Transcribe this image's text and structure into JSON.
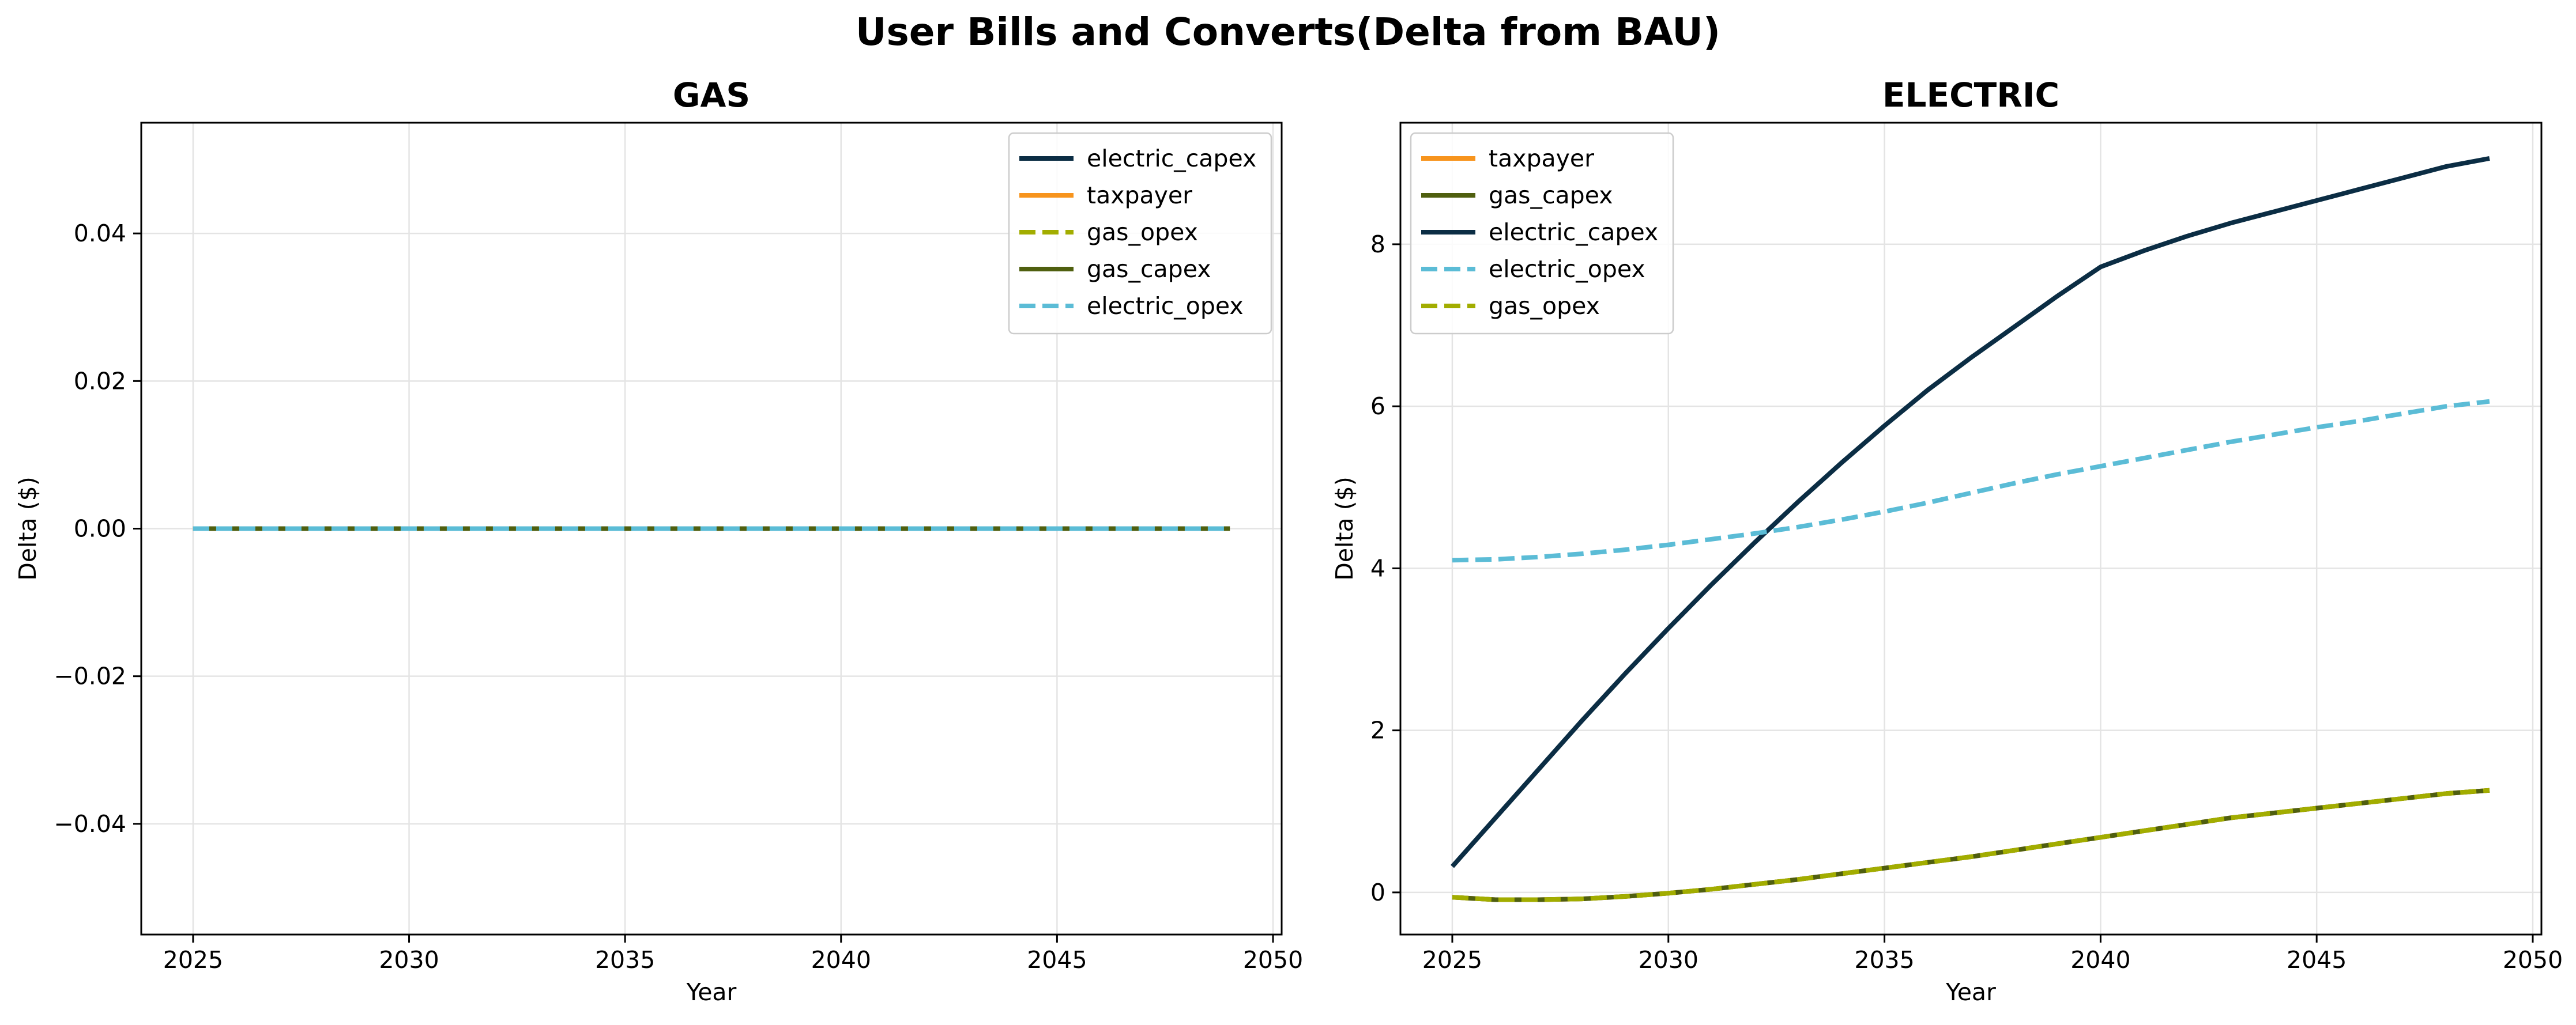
{
  "figure": {
    "suptitle": "User Bills and Converts(Delta from BAU)"
  },
  "chart_data": [
    {
      "type": "line",
      "title": "GAS",
      "xlabel": "Year",
      "ylabel": "Delta ($)",
      "xlim": [
        2023.8,
        2050.2
      ],
      "ylim": [
        -0.055,
        0.055
      ],
      "xticks": [
        2025,
        2030,
        2035,
        2040,
        2045,
        2050
      ],
      "xtick_labels": [
        "2025",
        "2030",
        "2035",
        "2040",
        "2045",
        "2050"
      ],
      "yticks": [
        -0.04,
        -0.02,
        0.0,
        0.02,
        0.04
      ],
      "ytick_labels": [
        "−0.04",
        "−0.02",
        "0.00",
        "0.02",
        "0.04"
      ],
      "grid": true,
      "legend_position": "upper right",
      "x": [
        2025,
        2026,
        2027,
        2028,
        2029,
        2030,
        2031,
        2032,
        2033,
        2034,
        2035,
        2036,
        2037,
        2038,
        2039,
        2040,
        2041,
        2042,
        2043,
        2044,
        2045,
        2046,
        2047,
        2048,
        2049
      ],
      "series": [
        {
          "name": "electric_capex",
          "color": "#0b2d44",
          "dash": "solid",
          "values": [
            0,
            0,
            0,
            0,
            0,
            0,
            0,
            0,
            0,
            0,
            0,
            0,
            0,
            0,
            0,
            0,
            0,
            0,
            0,
            0,
            0,
            0,
            0,
            0,
            0
          ]
        },
        {
          "name": "taxpayer",
          "color": "#f7941d",
          "dash": "solid",
          "values": [
            0,
            0,
            0,
            0,
            0,
            0,
            0,
            0,
            0,
            0,
            0,
            0,
            0,
            0,
            0,
            0,
            0,
            0,
            0,
            0,
            0,
            0,
            0,
            0,
            0
          ]
        },
        {
          "name": "gas_opex",
          "color": "#a2ad00",
          "dash": "dashed",
          "values": [
            0,
            0,
            0,
            0,
            0,
            0,
            0,
            0,
            0,
            0,
            0,
            0,
            0,
            0,
            0,
            0,
            0,
            0,
            0,
            0,
            0,
            0,
            0,
            0,
            0
          ]
        },
        {
          "name": "gas_capex",
          "color": "#4f5f0f",
          "dash": "solid",
          "values": [
            0,
            0,
            0,
            0,
            0,
            0,
            0,
            0,
            0,
            0,
            0,
            0,
            0,
            0,
            0,
            0,
            0,
            0,
            0,
            0,
            0,
            0,
            0,
            0,
            0
          ]
        },
        {
          "name": "electric_opex",
          "color": "#5bbcd6",
          "dash": "dashed",
          "values": [
            0,
            0,
            0,
            0,
            0,
            0,
            0,
            0,
            0,
            0,
            0,
            0,
            0,
            0,
            0,
            0,
            0,
            0,
            0,
            0,
            0,
            0,
            0,
            0,
            0
          ]
        }
      ]
    },
    {
      "type": "line",
      "title": "ELECTRIC",
      "xlabel": "Year",
      "ylabel": "Delta ($)",
      "xlim": [
        2023.8,
        2050.2
      ],
      "ylim": [
        -0.52,
        9.5
      ],
      "xticks": [
        2025,
        2030,
        2035,
        2040,
        2045,
        2050
      ],
      "xtick_labels": [
        "2025",
        "2030",
        "2035",
        "2040",
        "2045",
        "2050"
      ],
      "yticks": [
        0,
        2,
        4,
        6,
        8
      ],
      "ytick_labels": [
        "0",
        "2",
        "4",
        "6",
        "8"
      ],
      "grid": true,
      "legend_position": "upper left",
      "x": [
        2025,
        2026,
        2027,
        2028,
        2029,
        2030,
        2031,
        2032,
        2033,
        2034,
        2035,
        2036,
        2037,
        2038,
        2039,
        2040,
        2041,
        2042,
        2043,
        2044,
        2045,
        2046,
        2047,
        2048,
        2049
      ],
      "series": [
        {
          "name": "taxpayer",
          "color": "#f7941d",
          "dash": "solid",
          "values": [
            -0.06,
            -0.09,
            -0.09,
            -0.08,
            -0.05,
            -0.01,
            0.04,
            0.1,
            0.16,
            0.23,
            0.3,
            0.37,
            0.44,
            0.52,
            0.6,
            0.68,
            0.76,
            0.84,
            0.92,
            0.98,
            1.04,
            1.1,
            1.16,
            1.22,
            1.26
          ]
        },
        {
          "name": "gas_capex",
          "color": "#4f5f0f",
          "dash": "solid",
          "values": [
            -0.06,
            -0.09,
            -0.09,
            -0.08,
            -0.05,
            -0.01,
            0.04,
            0.1,
            0.16,
            0.23,
            0.3,
            0.37,
            0.44,
            0.52,
            0.6,
            0.68,
            0.76,
            0.84,
            0.92,
            0.98,
            1.04,
            1.1,
            1.16,
            1.22,
            1.26
          ]
        },
        {
          "name": "electric_capex",
          "color": "#0b2d44",
          "dash": "solid",
          "values": [
            0.32,
            0.92,
            1.52,
            2.12,
            2.7,
            3.26,
            3.8,
            4.32,
            4.82,
            5.3,
            5.76,
            6.2,
            6.6,
            6.98,
            7.36,
            7.72,
            7.92,
            8.1,
            8.26,
            8.4,
            8.54,
            8.68,
            8.82,
            8.96,
            9.06
          ]
        },
        {
          "name": "electric_opex",
          "color": "#5bbcd6",
          "dash": "dashed",
          "values": [
            4.1,
            4.11,
            4.14,
            4.18,
            4.23,
            4.29,
            4.36,
            4.43,
            4.51,
            4.6,
            4.7,
            4.81,
            4.93,
            5.05,
            5.16,
            5.26,
            5.36,
            5.46,
            5.56,
            5.65,
            5.74,
            5.82,
            5.91,
            6.0,
            6.06
          ]
        },
        {
          "name": "gas_opex",
          "color": "#a2ad00",
          "dash": "dashed",
          "values": [
            -0.06,
            -0.09,
            -0.09,
            -0.08,
            -0.05,
            -0.01,
            0.04,
            0.1,
            0.16,
            0.23,
            0.3,
            0.37,
            0.44,
            0.52,
            0.6,
            0.68,
            0.76,
            0.84,
            0.92,
            0.98,
            1.04,
            1.1,
            1.16,
            1.22,
            1.26
          ]
        }
      ]
    }
  ]
}
